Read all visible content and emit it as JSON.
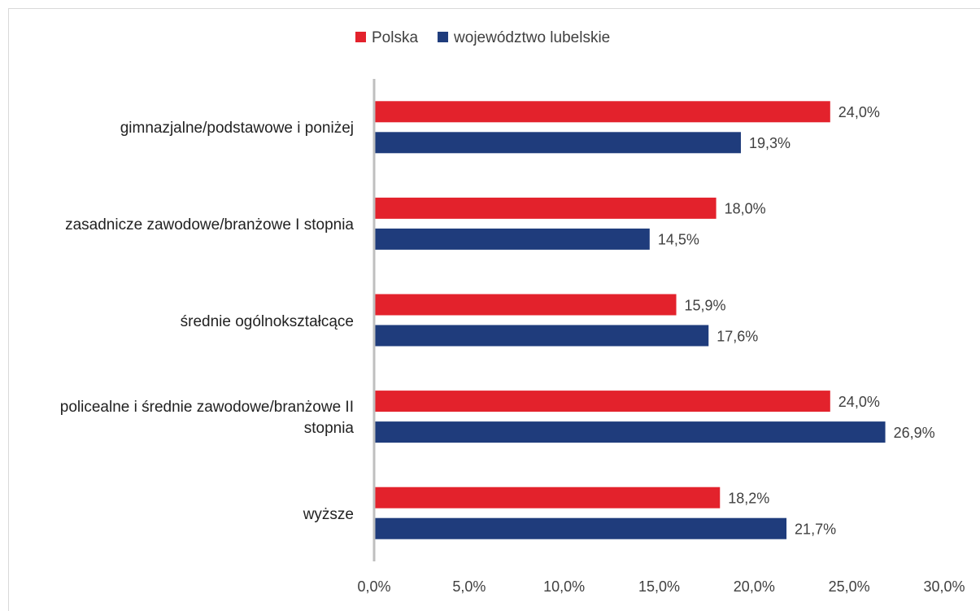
{
  "chart_data": {
    "type": "hbar",
    "categories": [
      "gimnazjalne/podstawowe i poniżej",
      "zasadnicze zawodowe/branżowe I stopnia",
      "średnie ogólnokształcące",
      "policealne i średnie zawodowe/branżowe II stopnia",
      "wyższe"
    ],
    "series": [
      {
        "name": "Polska",
        "color": "#e3222c",
        "values": [
          24.0,
          18.0,
          15.9,
          24.0,
          18.2
        ],
        "value_labels": [
          "24,0%",
          "18,0%",
          "15,9%",
          "24,0%",
          "18,2%"
        ]
      },
      {
        "name": "województwo lubelskie",
        "color": "#1f3c7c",
        "values": [
          19.3,
          14.5,
          17.6,
          26.9,
          21.7
        ],
        "value_labels": [
          "19,3%",
          "14,5%",
          "17,6%",
          "26,9%",
          "21,7%"
        ]
      }
    ],
    "xlim": [
      0,
      30
    ],
    "xticks": [
      {
        "value": 0,
        "label": "0,0%"
      },
      {
        "value": 5,
        "label": "5,0%"
      },
      {
        "value": 10,
        "label": "10,0%"
      },
      {
        "value": 15,
        "label": "15,0%"
      },
      {
        "value": 20,
        "label": "20,0%"
      },
      {
        "value": 25,
        "label": "25,0%"
      },
      {
        "value": 30,
        "label": "30,0%"
      }
    ],
    "legend": "top",
    "grid": false
  }
}
